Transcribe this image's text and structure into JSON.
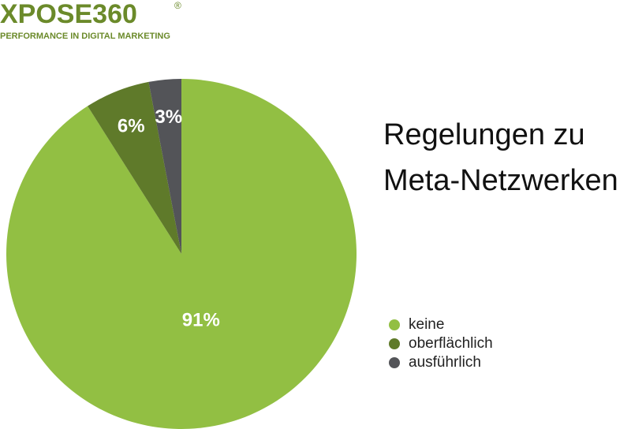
{
  "header": {
    "logo": "XPOSE360",
    "trademark": "®",
    "tagline": "PERFORMANCE IN DIGITAL MARKETING"
  },
  "chart_data": {
    "type": "pie",
    "title": "Regelungen zu Meta-Netzwerken",
    "categories": [
      "keine",
      "oberflächlich",
      "ausführlich"
    ],
    "values": [
      91,
      6,
      3
    ],
    "value_labels": [
      "91%",
      "6%",
      "3%"
    ],
    "colors": [
      "#92bf43",
      "#5f7a2a",
      "#535458"
    ]
  }
}
